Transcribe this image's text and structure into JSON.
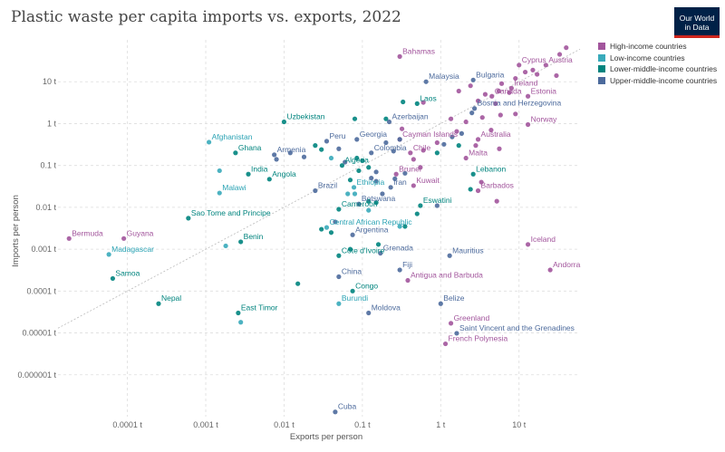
{
  "title": "Plastic waste per capita imports vs. exports, 2022",
  "logo": {
    "line1": "Our World",
    "line2": "in Data"
  },
  "colors": {
    "high": "#a2559c",
    "low": "#38aaba",
    "lower_middle": "#00847e",
    "upper_middle": "#4c6a9c"
  },
  "legend": [
    {
      "key": "high",
      "label": "High-income countries"
    },
    {
      "key": "low",
      "label": "Low-income countries"
    },
    {
      "key": "lower_middle",
      "label": "Lower-middle-income countries"
    },
    {
      "key": "upper_middle",
      "label": "Upper-middle-income countries"
    }
  ],
  "chart_data": {
    "type": "scatter",
    "title": "Plastic waste per capita imports vs. exports, 2022",
    "xlabel": "Exports per person",
    "ylabel": "Imports per person",
    "x_scale": "log",
    "y_scale": "log",
    "x_ticks": [
      0.0001,
      0.001,
      0.01,
      0.1,
      1,
      10
    ],
    "x_tick_labels": [
      "0.0001 t",
      "0.001 t",
      "0.01 t",
      "0.1 t",
      "1 t",
      "10 t"
    ],
    "y_ticks": [
      10,
      1,
      0.1,
      0.01,
      0.001,
      0.0001,
      1e-05,
      1e-06
    ],
    "y_tick_labels": [
      "10 t",
      "1 t",
      "0.1 t",
      "0.01 t",
      "0.001 t",
      "0.0001 t",
      "0.00001 t",
      "0.000001 t"
    ],
    "xlim": [
      1.3e-05,
      60
    ],
    "ylim": [
      1e-07,
      100
    ],
    "grid": true,
    "reference_line": "x = y",
    "legend_position": "top-right",
    "points": [
      {
        "label": "Bahamas",
        "x": 0.3,
        "y": 40,
        "g": "high"
      },
      {
        "label": "Cyprus",
        "x": 10,
        "y": 25,
        "g": "high"
      },
      {
        "label": "Austria",
        "x": 22,
        "y": 25,
        "g": "high"
      },
      {
        "label": "Malaysia",
        "x": 0.65,
        "y": 10,
        "g": "upper_middle"
      },
      {
        "label": "Bulgaria",
        "x": 2.6,
        "y": 11,
        "g": "upper_middle"
      },
      {
        "label": "Ireland",
        "x": 8,
        "y": 7,
        "g": "high"
      },
      {
        "label": "Canada",
        "x": 4.5,
        "y": 4.5,
        "g": "high"
      },
      {
        "label": "Estonia",
        "x": 13,
        "y": 4.5,
        "g": "high"
      },
      {
        "label": "Laos",
        "x": 0.5,
        "y": 3,
        "g": "lower_middle"
      },
      {
        "label": "Bosnia and Herzegovina",
        "x": 2.7,
        "y": 2.3,
        "g": "upper_middle"
      },
      {
        "label": "Uzbekistan",
        "x": 0.01,
        "y": 1.1,
        "g": "lower_middle"
      },
      {
        "label": "Azerbaijan",
        "x": 0.22,
        "y": 1.1,
        "g": "upper_middle"
      },
      {
        "label": "Norway",
        "x": 13,
        "y": 0.95,
        "g": "high"
      },
      {
        "label": "Afghanistan",
        "x": 0.0011,
        "y": 0.36,
        "g": "low"
      },
      {
        "label": "Peru",
        "x": 0.035,
        "y": 0.38,
        "g": "upper_middle"
      },
      {
        "label": "Georgia",
        "x": 0.085,
        "y": 0.42,
        "g": "upper_middle"
      },
      {
        "label": "Cayman Islands",
        "x": 0.3,
        "y": 0.42,
        "g": "high"
      },
      {
        "label": "Australia",
        "x": 3,
        "y": 0.42,
        "g": "high"
      },
      {
        "label": "Ghana",
        "x": 0.0024,
        "y": 0.2,
        "g": "lower_middle"
      },
      {
        "label": "Armenia",
        "x": 0.0075,
        "y": 0.18,
        "g": "upper_middle"
      },
      {
        "label": "Colombia",
        "x": 0.13,
        "y": 0.2,
        "g": "upper_middle"
      },
      {
        "label": "Chile",
        "x": 0.41,
        "y": 0.2,
        "g": "high"
      },
      {
        "label": "Malta",
        "x": 2.1,
        "y": 0.15,
        "g": "high"
      },
      {
        "label": "Algeria",
        "x": 0.055,
        "y": 0.1,
        "g": "lower_middle"
      },
      {
        "label": "India",
        "x": 0.0035,
        "y": 0.062,
        "g": "lower_middle"
      },
      {
        "label": "Angola",
        "x": 0.0065,
        "y": 0.047,
        "g": "lower_middle"
      },
      {
        "label": "Brunei",
        "x": 0.27,
        "y": 0.062,
        "g": "high"
      },
      {
        "label": "Lebanon",
        "x": 2.6,
        "y": 0.062,
        "g": "lower_middle"
      },
      {
        "label": "Malawi",
        "x": 0.0015,
        "y": 0.022,
        "g": "low"
      },
      {
        "label": "Brazil",
        "x": 0.025,
        "y": 0.025,
        "g": "upper_middle"
      },
      {
        "label": "Ethiopia",
        "x": 0.078,
        "y": 0.03,
        "g": "low"
      },
      {
        "label": "Iran",
        "x": 0.23,
        "y": 0.03,
        "g": "upper_middle"
      },
      {
        "label": "Kuwait",
        "x": 0.45,
        "y": 0.033,
        "g": "high"
      },
      {
        "label": "Barbados",
        "x": 3,
        "y": 0.025,
        "g": "high"
      },
      {
        "label": "Botswana",
        "x": 0.09,
        "y": 0.012,
        "g": "upper_middle"
      },
      {
        "label": "Eswatini",
        "x": 0.55,
        "y": 0.011,
        "g": "lower_middle"
      },
      {
        "label": "Cameroon",
        "x": 0.05,
        "y": 0.009,
        "g": "lower_middle"
      },
      {
        "label": "Sao Tome and Principe",
        "x": 0.0006,
        "y": 0.0055,
        "g": "lower_middle"
      },
      {
        "label": "Central African Republic",
        "x": 0.035,
        "y": 0.0033,
        "g": "low"
      },
      {
        "label": "Argentina",
        "x": 0.075,
        "y": 0.0022,
        "g": "upper_middle"
      },
      {
        "label": "Bermuda",
        "x": 1.8e-05,
        "y": 0.0018,
        "g": "high"
      },
      {
        "label": "Guyana",
        "x": 9e-05,
        "y": 0.0018,
        "g": "high"
      },
      {
        "label": "Benin",
        "x": 0.0028,
        "y": 0.0015,
        "g": "lower_middle"
      },
      {
        "label": "Iceland",
        "x": 13,
        "y": 0.0013,
        "g": "high"
      },
      {
        "label": "Madagascar",
        "x": 5.8e-05,
        "y": 0.00075,
        "g": "low"
      },
      {
        "label": "Cote d'Ivoire",
        "x": 0.05,
        "y": 0.0007,
        "g": "lower_middle"
      },
      {
        "label": "Grenada",
        "x": 0.17,
        "y": 0.0008,
        "g": "upper_middle"
      },
      {
        "label": "Mauritius",
        "x": 1.3,
        "y": 0.0007,
        "g": "upper_middle"
      },
      {
        "label": "Fiji",
        "x": 0.3,
        "y": 0.00032,
        "g": "upper_middle"
      },
      {
        "label": "Andorra",
        "x": 25,
        "y": 0.00032,
        "g": "high"
      },
      {
        "label": "Samoa",
        "x": 6.5e-05,
        "y": 0.0002,
        "g": "lower_middle"
      },
      {
        "label": "China",
        "x": 0.05,
        "y": 0.00022,
        "g": "upper_middle"
      },
      {
        "label": "Antigua and Barbuda",
        "x": 0.38,
        "y": 0.00018,
        "g": "high"
      },
      {
        "label": "Congo",
        "x": 0.075,
        "y": 0.0001,
        "g": "lower_middle"
      },
      {
        "label": "Nepal",
        "x": 0.00025,
        "y": 5e-05,
        "g": "lower_middle"
      },
      {
        "label": "Belize",
        "x": 1,
        "y": 5e-05,
        "g": "upper_middle"
      },
      {
        "label": "Burundi",
        "x": 0.05,
        "y": 5e-05,
        "g": "low"
      },
      {
        "label": "East Timor",
        "x": 0.0026,
        "y": 3e-05,
        "g": "lower_middle"
      },
      {
        "label": "Moldova",
        "x": 0.12,
        "y": 3e-05,
        "g": "upper_middle"
      },
      {
        "label": "Greenland",
        "x": 1.35,
        "y": 1.7e-05,
        "g": "high"
      },
      {
        "label": "Saint Vincent and the Grenadines",
        "x": 1.6,
        "y": 9.8e-06,
        "g": "upper_middle"
      },
      {
        "label": "French Polynesia",
        "x": 1.15,
        "y": 5.5e-06,
        "g": "high"
      },
      {
        "label": "Cuba",
        "x": 0.045,
        "y": 1.3e-07,
        "g": "upper_middle"
      },
      {
        "x": 40,
        "y": 65,
        "g": "high"
      },
      {
        "x": 33,
        "y": 45,
        "g": "high"
      },
      {
        "x": 15,
        "y": 19,
        "g": "high"
      },
      {
        "x": 17,
        "y": 15,
        "g": "high"
      },
      {
        "x": 12,
        "y": 17,
        "g": "high"
      },
      {
        "x": 9,
        "y": 12,
        "g": "high"
      },
      {
        "x": 30,
        "y": 14,
        "g": "high"
      },
      {
        "x": 6,
        "y": 9,
        "g": "high"
      },
      {
        "x": 5.5,
        "y": 6,
        "g": "high"
      },
      {
        "x": 3.7,
        "y": 5,
        "g": "high"
      },
      {
        "x": 2.4,
        "y": 8,
        "g": "high"
      },
      {
        "x": 1.7,
        "y": 6,
        "g": "high"
      },
      {
        "x": 7.5,
        "y": 5.5,
        "g": "high"
      },
      {
        "x": 3,
        "y": 3.5,
        "g": "high"
      },
      {
        "x": 5,
        "y": 3,
        "g": "high"
      },
      {
        "x": 3.4,
        "y": 1.4,
        "g": "high"
      },
      {
        "x": 5.8,
        "y": 1.6,
        "g": "high"
      },
      {
        "x": 9,
        "y": 1.7,
        "g": "high"
      },
      {
        "x": 2.1,
        "y": 1.1,
        "g": "high"
      },
      {
        "x": 1.35,
        "y": 1.3,
        "g": "high"
      },
      {
        "x": 1.6,
        "y": 0.65,
        "g": "high"
      },
      {
        "x": 4.4,
        "y": 0.7,
        "g": "high"
      },
      {
        "x": 5.6,
        "y": 0.25,
        "g": "high"
      },
      {
        "x": 2.8,
        "y": 0.3,
        "g": "high"
      },
      {
        "x": 0.9,
        "y": 0.35,
        "g": "high"
      },
      {
        "x": 0.6,
        "y": 3.2,
        "g": "high"
      },
      {
        "x": 0.32,
        "y": 0.75,
        "g": "high"
      },
      {
        "x": 0.45,
        "y": 0.14,
        "g": "high"
      },
      {
        "x": 3.3,
        "y": 0.04,
        "g": "high"
      },
      {
        "x": 5.2,
        "y": 0.014,
        "g": "high"
      },
      {
        "x": 0.6,
        "y": 0.23,
        "g": "high"
      },
      {
        "x": 0.55,
        "y": 0.09,
        "g": "high"
      },
      {
        "x": 2.5,
        "y": 1.8,
        "g": "upper_middle"
      },
      {
        "x": 1.85,
        "y": 0.58,
        "g": "upper_middle"
      },
      {
        "x": 1.4,
        "y": 0.48,
        "g": "upper_middle"
      },
      {
        "x": 1.1,
        "y": 0.32,
        "g": "upper_middle"
      },
      {
        "x": 0.25,
        "y": 0.22,
        "g": "upper_middle"
      },
      {
        "x": 0.2,
        "y": 0.35,
        "g": "upper_middle"
      },
      {
        "x": 0.05,
        "y": 0.25,
        "g": "upper_middle"
      },
      {
        "x": 0.06,
        "y": 0.12,
        "g": "upper_middle"
      },
      {
        "x": 0.018,
        "y": 0.16,
        "g": "upper_middle"
      },
      {
        "x": 0.13,
        "y": 0.05,
        "g": "upper_middle"
      },
      {
        "x": 0.15,
        "y": 0.07,
        "g": "upper_middle"
      },
      {
        "x": 0.26,
        "y": 0.048,
        "g": "upper_middle"
      },
      {
        "x": 0.35,
        "y": 0.065,
        "g": "upper_middle"
      },
      {
        "x": 0.18,
        "y": 0.021,
        "g": "upper_middle"
      },
      {
        "x": 0.3,
        "y": 0.42,
        "g": "upper_middle"
      },
      {
        "x": 0.012,
        "y": 0.2,
        "g": "upper_middle"
      },
      {
        "x": 0.008,
        "y": 0.14,
        "g": "upper_middle"
      },
      {
        "x": 0.15,
        "y": 0.042,
        "g": "upper_middle"
      },
      {
        "x": 0.045,
        "y": 0.0045,
        "g": "upper_middle"
      },
      {
        "x": 0.9,
        "y": 0.011,
        "g": "upper_middle"
      },
      {
        "x": 0.33,
        "y": 3.3,
        "g": "lower_middle"
      },
      {
        "x": 0.08,
        "y": 1.3,
        "g": "lower_middle"
      },
      {
        "x": 0.2,
        "y": 1.3,
        "g": "lower_middle"
      },
      {
        "x": 1.7,
        "y": 0.3,
        "g": "lower_middle"
      },
      {
        "x": 0.9,
        "y": 0.2,
        "g": "lower_middle"
      },
      {
        "x": 0.03,
        "y": 0.24,
        "g": "lower_middle"
      },
      {
        "x": 0.085,
        "y": 0.15,
        "g": "lower_middle"
      },
      {
        "x": 0.1,
        "y": 0.13,
        "g": "lower_middle"
      },
      {
        "x": 0.12,
        "y": 0.09,
        "g": "lower_middle"
      },
      {
        "x": 0.025,
        "y": 0.3,
        "g": "lower_middle"
      },
      {
        "x": 0.09,
        "y": 0.075,
        "g": "lower_middle"
      },
      {
        "x": 0.07,
        "y": 0.045,
        "g": "lower_middle"
      },
      {
        "x": 0.12,
        "y": 0.014,
        "g": "lower_middle"
      },
      {
        "x": 0.15,
        "y": 0.013,
        "g": "lower_middle"
      },
      {
        "x": 0.35,
        "y": 0.0035,
        "g": "lower_middle"
      },
      {
        "x": 0.03,
        "y": 0.003,
        "g": "lower_middle"
      },
      {
        "x": 0.07,
        "y": 0.001,
        "g": "lower_middle"
      },
      {
        "x": 0.16,
        "y": 0.0013,
        "g": "lower_middle"
      },
      {
        "x": 0.5,
        "y": 0.007,
        "g": "lower_middle"
      },
      {
        "x": 2.4,
        "y": 0.027,
        "g": "lower_middle"
      },
      {
        "x": 0.015,
        "y": 0.00015,
        "g": "lower_middle"
      },
      {
        "x": 0.04,
        "y": 0.0025,
        "g": "lower_middle"
      },
      {
        "x": 0.0015,
        "y": 0.075,
        "g": "low"
      },
      {
        "x": 0.0018,
        "y": 0.0012,
        "g": "low"
      },
      {
        "x": 0.0028,
        "y": 1.8e-05,
        "g": "low"
      },
      {
        "x": 0.08,
        "y": 0.021,
        "g": "low"
      },
      {
        "x": 0.065,
        "y": 0.021,
        "g": "low"
      },
      {
        "x": 0.04,
        "y": 0.15,
        "g": "low"
      },
      {
        "x": 0.3,
        "y": 0.0035,
        "g": "low"
      },
      {
        "x": 0.12,
        "y": 0.0085,
        "g": "low"
      }
    ]
  }
}
